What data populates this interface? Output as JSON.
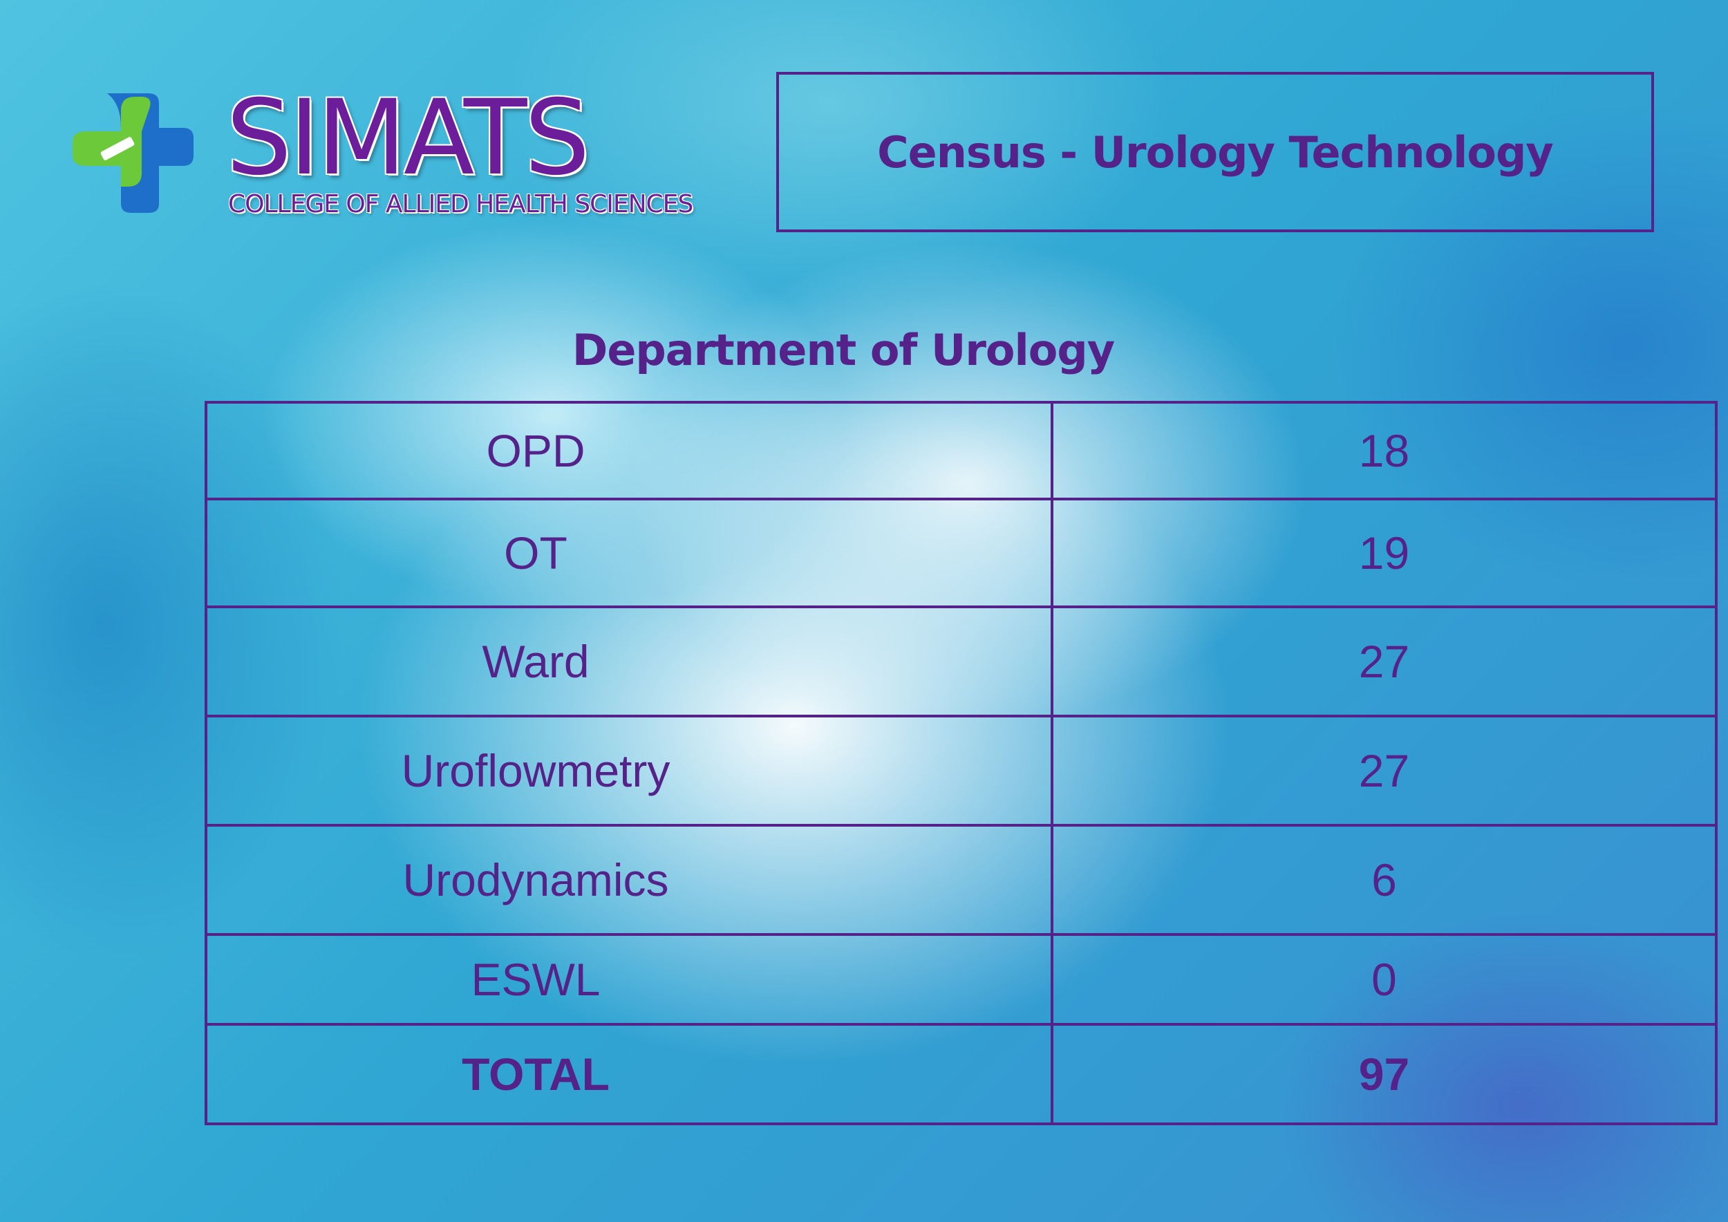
{
  "logo": {
    "name": "SIMATS",
    "subtitle": "COLLEGE OF ALLIED HEALTH SCIENCES",
    "colors": {
      "text": "#6b1d9a",
      "mark_green": "#6cc93a",
      "mark_blue": "#1e6fc9"
    }
  },
  "header": {
    "title": "Census - Urology Technology"
  },
  "department": {
    "title": "Department of  Urology"
  },
  "table": {
    "rows": [
      {
        "label": "OPD",
        "value": "18"
      },
      {
        "label": "OT",
        "value": "19"
      },
      {
        "label": "Ward",
        "value": "27"
      },
      {
        "label": "Uroflowmetry",
        "value": "27"
      },
      {
        "label": "Urodynamics",
        "value": "6"
      },
      {
        "label": "ESWL",
        "value": "0"
      }
    ],
    "total": {
      "label": "TOTAL",
      "value": "97"
    }
  },
  "colors": {
    "accent": "#55228a"
  }
}
